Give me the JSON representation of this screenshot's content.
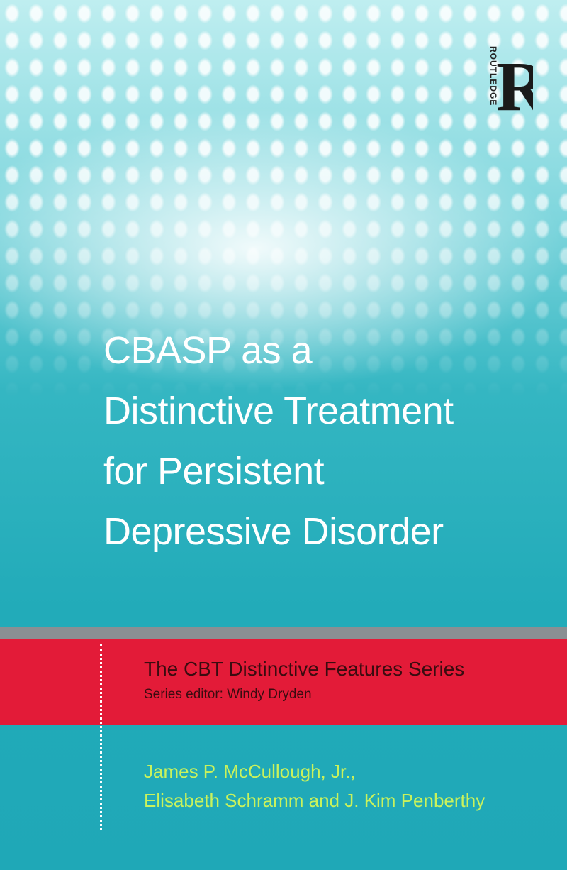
{
  "publisher": {
    "logo_letter": "R",
    "logo_text": "ROUTLEDGE"
  },
  "title_lines": [
    "CBASP as a",
    "Distinctive Treatment",
    "for Persistent",
    "Depressive Disorder"
  ],
  "series": {
    "name": "The CBT Distinctive Features Series",
    "editor": "Series editor: Windy Dryden"
  },
  "authors": [
    "James P. McCullough, Jr.,",
    "Elisabeth Schramm and J. Kim Penberthy"
  ],
  "colors": {
    "background": "#22abb9",
    "band": "#e31b38",
    "authors": "#c9f25c"
  }
}
